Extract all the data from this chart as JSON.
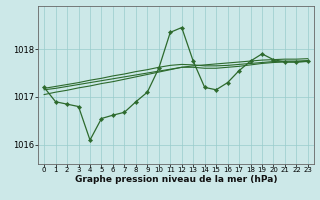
{
  "title": "Graphe pression niveau de la mer (hPa)",
  "bg_color": "#cce8e8",
  "grid_color": "#99cccc",
  "line_color": "#2d6a2d",
  "xlim": [
    -0.5,
    23.5
  ],
  "ylim": [
    1015.6,
    1018.9
  ],
  "yticks": [
    1016,
    1017,
    1018
  ],
  "xticks": [
    0,
    1,
    2,
    3,
    4,
    5,
    6,
    7,
    8,
    9,
    10,
    11,
    12,
    13,
    14,
    15,
    16,
    17,
    18,
    19,
    20,
    21,
    22,
    23
  ],
  "main_series": [
    1017.2,
    1016.9,
    1016.85,
    1016.8,
    1016.1,
    1016.55,
    1016.62,
    1016.68,
    1016.9,
    1017.1,
    1017.6,
    1018.35,
    1018.45,
    1017.75,
    1017.2,
    1017.15,
    1017.3,
    1017.55,
    1017.75,
    1017.9,
    1017.78,
    1017.73,
    1017.73,
    1017.75
  ],
  "smooth1": [
    1017.15,
    1017.18,
    1017.22,
    1017.26,
    1017.3,
    1017.34,
    1017.38,
    1017.42,
    1017.46,
    1017.5,
    1017.54,
    1017.58,
    1017.62,
    1017.65,
    1017.67,
    1017.69,
    1017.71,
    1017.73,
    1017.75,
    1017.77,
    1017.78,
    1017.79,
    1017.79,
    1017.8
  ],
  "smooth2": [
    1017.05,
    1017.1,
    1017.14,
    1017.19,
    1017.23,
    1017.28,
    1017.32,
    1017.37,
    1017.42,
    1017.47,
    1017.52,
    1017.57,
    1017.62,
    1017.62,
    1017.6,
    1017.6,
    1017.62,
    1017.64,
    1017.67,
    1017.7,
    1017.72,
    1017.73,
    1017.73,
    1017.74
  ],
  "smooth3": [
    1017.18,
    1017.22,
    1017.26,
    1017.3,
    1017.35,
    1017.39,
    1017.44,
    1017.48,
    1017.53,
    1017.57,
    1017.62,
    1017.66,
    1017.68,
    1017.67,
    1017.65,
    1017.65,
    1017.66,
    1017.68,
    1017.7,
    1017.72,
    1017.74,
    1017.75,
    1017.75,
    1017.76
  ],
  "ytick_fontsize": 6,
  "xtick_fontsize": 5,
  "title_fontsize": 6.5
}
